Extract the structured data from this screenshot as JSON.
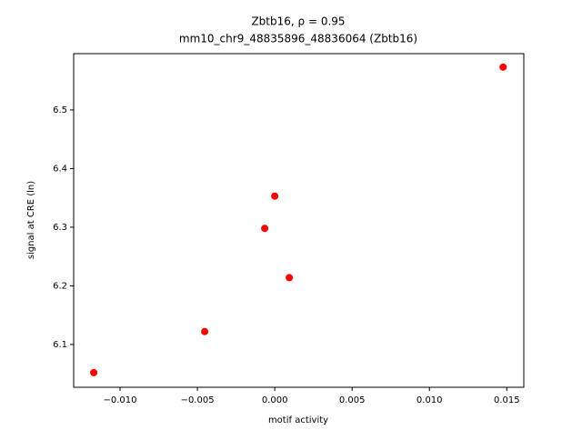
{
  "chart_data": {
    "type": "scatter",
    "title": "Zbtb16, ρ = 0.95",
    "subtitle": "mm10_chr9_48835896_48836064 (Zbtb16)",
    "x_label": "motif activity",
    "y_label": "signal at CRE (ln)",
    "series": [
      {
        "color": "#ff0000",
        "x": [
          -0.0117,
          -0.00453,
          -0.00065,
          0.0,
          0.00094,
          0.01476
        ],
        "values": [
          6.052,
          6.122,
          6.298,
          6.353,
          6.214,
          6.573
        ]
      }
    ],
    "xlim": [
      -0.013,
      0.0161
    ],
    "ylim": [
      6.027,
      6.596
    ],
    "xticks": [
      {
        "value": -0.01,
        "label": "−0.010"
      },
      {
        "value": -0.005,
        "label": "−0.005"
      },
      {
        "value": 0,
        "label": "0.000"
      },
      {
        "value": 0.005,
        "label": "0.005"
      },
      {
        "value": 0.01,
        "label": "0.010"
      },
      {
        "value": 0.015,
        "label": "0.015"
      }
    ],
    "yticks": [
      6.1,
      6.2,
      6.3,
      6.4,
      6.5
    ],
    "grid": false
  }
}
